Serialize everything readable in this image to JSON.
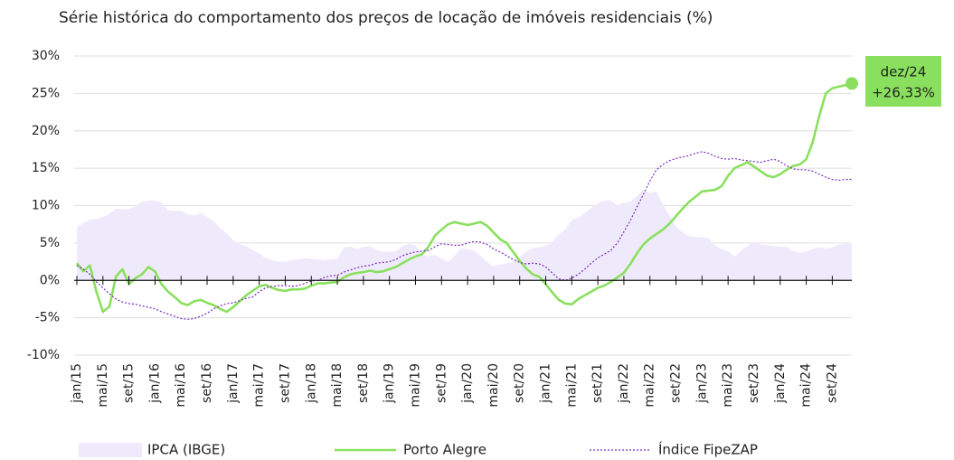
{
  "chart_data": {
    "type": "line",
    "title": "Série histórica do comportamento dos preços de locação de imóveis residenciais (%)",
    "categories": [
      "jan/15",
      null,
      null,
      null,
      "mai/15",
      null,
      null,
      null,
      "set/15",
      null,
      null,
      null,
      "jan/16",
      null,
      null,
      null,
      "mai/16",
      null,
      null,
      null,
      "set/16",
      null,
      null,
      null,
      "jan/17",
      null,
      null,
      null,
      "mai/17",
      null,
      null,
      null,
      "set/17",
      null,
      null,
      null,
      "jan/18",
      null,
      null,
      null,
      "mai/18",
      null,
      null,
      null,
      "set/18",
      null,
      null,
      null,
      "jan/19",
      null,
      null,
      null,
      "mai/19",
      null,
      null,
      null,
      "set/19",
      null,
      null,
      null,
      "jan/20",
      null,
      null,
      null,
      "mai/20",
      null,
      null,
      null,
      "set/20",
      null,
      null,
      null,
      "jan/21",
      null,
      null,
      null,
      "mai/21",
      null,
      null,
      null,
      "set/21",
      null,
      null,
      null,
      "jan/22",
      null,
      null,
      null,
      "mai/22",
      null,
      null,
      null,
      "set/22",
      null,
      null,
      null,
      "jan/23",
      null,
      null,
      null,
      "mai/23",
      null,
      null,
      null,
      "set/23",
      null,
      null,
      null,
      "jan/24",
      null,
      null,
      null,
      "mai/24",
      null,
      null,
      null,
      "set/24",
      null,
      null,
      null
    ],
    "series": [
      {
        "name": "IPCA (IBGE)",
        "style": "area",
        "color": "#efeafb",
        "values": [
          7.1,
          7.7,
          8.1,
          8.2,
          8.5,
          8.9,
          9.6,
          9.5,
          9.5,
          9.9,
          10.5,
          10.7,
          10.7,
          10.4,
          9.4,
          9.3,
          9.3,
          8.8,
          8.7,
          9.0,
          8.5,
          7.9,
          7.0,
          6.3,
          5.4,
          4.8,
          4.6,
          4.1,
          3.6,
          3.0,
          2.7,
          2.5,
          2.5,
          2.7,
          2.8,
          3.0,
          2.9,
          2.8,
          2.7,
          2.8,
          2.9,
          4.4,
          4.5,
          4.2,
          4.5,
          4.6,
          4.1,
          3.8,
          3.8,
          3.9,
          4.6,
          4.9,
          4.7,
          3.4,
          3.2,
          3.4,
          2.9,
          2.5,
          3.3,
          4.3,
          4.2,
          4.0,
          3.3,
          2.4,
          1.9,
          2.1,
          2.3,
          2.4,
          3.1,
          3.9,
          4.3,
          4.5,
          4.6,
          5.2,
          6.1,
          6.8,
          8.1,
          8.4,
          9.0,
          9.7,
          10.3,
          10.7,
          10.7,
          10.1,
          10.4,
          10.5,
          11.3,
          12.1,
          11.7,
          11.9,
          10.1,
          8.7,
          7.2,
          6.5,
          5.9,
          5.8,
          5.8,
          5.6,
          4.7,
          4.2,
          3.9,
          3.2,
          4.0,
          4.6,
          5.2,
          4.8,
          4.7,
          4.6,
          4.5,
          4.5,
          3.9,
          3.7,
          3.9,
          4.2,
          4.5,
          4.2,
          4.4,
          4.8,
          4.9,
          4.8
        ]
      },
      {
        "name": "Porto Alegre",
        "style": "solid",
        "color": "#8ae05e",
        "values": [
          2.3,
          1.2,
          2.0,
          -1.5,
          -4.2,
          -3.5,
          0.5,
          1.5,
          -0.5,
          0.3,
          0.8,
          1.8,
          1.2,
          -0.5,
          -1.5,
          -2.2,
          -3.0,
          -3.3,
          -2.8,
          -2.6,
          -3.0,
          -3.3,
          -3.8,
          -4.2,
          -3.6,
          -2.8,
          -2.0,
          -1.4,
          -0.8,
          -0.6,
          -1.0,
          -1.3,
          -1.4,
          -1.2,
          -1.2,
          -1.1,
          -0.7,
          -0.4,
          -0.4,
          -0.3,
          -0.2,
          0.4,
          0.8,
          1.0,
          1.1,
          1.3,
          1.1,
          1.2,
          1.5,
          1.8,
          2.3,
          2.8,
          3.2,
          3.5,
          4.5,
          6.0,
          6.8,
          7.5,
          7.8,
          7.6,
          7.4,
          7.6,
          7.8,
          7.3,
          6.4,
          5.5,
          5.0,
          3.8,
          2.6,
          1.6,
          0.8,
          0.5,
          -0.5,
          -1.6,
          -2.6,
          -3.1,
          -3.2,
          -2.5,
          -2.0,
          -1.5,
          -1.0,
          -0.7,
          -0.2,
          0.4,
          1.0,
          2.2,
          3.6,
          4.8,
          5.6,
          6.2,
          6.8,
          7.6,
          8.6,
          9.6,
          10.5,
          11.2,
          11.9,
          12.0,
          12.1,
          12.6,
          14.0,
          15.0,
          15.4,
          15.8,
          15.2,
          14.6,
          14.0,
          13.8,
          14.2,
          14.8,
          15.3,
          15.5,
          16.2,
          18.5,
          22.0,
          25.0,
          25.7,
          25.9,
          26.1,
          26.33
        ]
      },
      {
        "name": "Índice FipeZAP",
        "style": "dotted",
        "color": "#7a2cc0",
        "values": [
          2.0,
          1.5,
          0.8,
          -0.2,
          -1.0,
          -1.8,
          -2.5,
          -2.9,
          -3.1,
          -3.2,
          -3.4,
          -3.6,
          -3.8,
          -4.2,
          -4.5,
          -4.8,
          -5.1,
          -5.2,
          -5.1,
          -4.8,
          -4.4,
          -3.8,
          -3.4,
          -3.1,
          -3.0,
          -2.7,
          -2.4,
          -2.2,
          -1.5,
          -1.0,
          -0.8,
          -0.7,
          -0.7,
          -0.8,
          -0.7,
          -0.4,
          -0.1,
          0.0,
          0.4,
          0.6,
          0.7,
          1.1,
          1.4,
          1.7,
          1.9,
          2.0,
          2.3,
          2.4,
          2.5,
          2.8,
          3.3,
          3.6,
          3.8,
          3.9,
          4.0,
          4.5,
          4.9,
          4.8,
          4.7,
          4.7,
          5.0,
          5.2,
          5.1,
          4.8,
          4.2,
          3.8,
          3.3,
          2.8,
          2.4,
          2.2,
          2.3,
          2.2,
          1.8,
          1.0,
          0.2,
          0.0,
          0.3,
          0.8,
          1.5,
          2.3,
          3.0,
          3.5,
          4.0,
          5.0,
          6.5,
          8.0,
          9.8,
          11.5,
          13.3,
          14.8,
          15.5,
          16.0,
          16.3,
          16.5,
          16.7,
          17.0,
          17.2,
          17.0,
          16.6,
          16.3,
          16.2,
          16.3,
          16.1,
          16.0,
          15.9,
          15.8,
          16.0,
          16.2,
          15.9,
          15.3,
          14.9,
          14.8,
          14.8,
          14.6,
          14.2,
          13.8,
          13.5,
          13.4,
          13.5,
          13.5
        ]
      }
    ],
    "annotation": {
      "title": "dez/24",
      "text": "+26,33%",
      "color": "#8ae05e"
    },
    "ylim": [
      -10,
      30
    ],
    "yticks": [
      {
        "value": -10,
        "label": "-10%"
      },
      {
        "value": -5,
        "label": "-5%"
      },
      {
        "value": 0,
        "label": "0%"
      },
      {
        "value": 5,
        "label": "5%"
      },
      {
        "value": 10,
        "label": "10%"
      },
      {
        "value": 15,
        "label": "15%"
      },
      {
        "value": 20,
        "label": "20%"
      },
      {
        "value": 25,
        "label": "25%"
      },
      {
        "value": 30,
        "label": "30%"
      }
    ],
    "grid": true
  }
}
